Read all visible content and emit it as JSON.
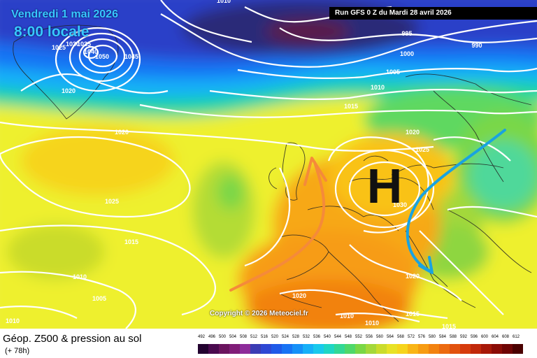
{
  "header": {
    "date": "Vendredi 1 mai 2026",
    "time": "8:00 locale",
    "run": "Run GFS 0 Z du Mardi 28 avril 2026"
  },
  "map": {
    "high_symbol": "H",
    "copyright": "Copyright © 2026 Meteociel.fr",
    "isobar_labels": [
      "1010",
      "995",
      "990",
      "1000",
      "1005",
      "1010",
      "1015",
      "1020",
      "1025",
      "1030",
      "1025",
      "1035",
      "1040",
      "1045",
      "1050",
      "1020",
      "1020",
      "1025",
      "1015",
      "1010",
      "1005",
      "1010",
      "1020",
      "1020",
      "1015",
      "1010",
      "1010",
      "1015",
      "1030"
    ],
    "colors": {
      "low": "#2a1a4a",
      "mid": "#0a3cc8",
      "warm": "#f6d200",
      "hot": "#ff8800"
    }
  },
  "footer": {
    "title": "Géop. Z500 & pression au sol",
    "subtitle": "(+ 78h)"
  },
  "legend": {
    "values": [
      "492",
      "496",
      "500",
      "504",
      "508",
      "512",
      "516",
      "520",
      "524",
      "528",
      "532",
      "536",
      "540",
      "544",
      "548",
      "552",
      "556",
      "560",
      "564",
      "568",
      "572",
      "576",
      "580",
      "584",
      "588",
      "592",
      "596",
      "600",
      "604",
      "608",
      "612"
    ],
    "colors": [
      "#230330",
      "#4a0a4e",
      "#6a145e",
      "#801d78",
      "#8d2c9a",
      "#3b3cb4",
      "#2e48d4",
      "#1f5ae8",
      "#1873f4",
      "#1690f8",
      "#17b0f8",
      "#19c9ec",
      "#1fd6c4",
      "#32d896",
      "#4fd86a",
      "#7ad746",
      "#a4d83a",
      "#cadc2c",
      "#e8e226",
      "#f6d41c",
      "#f9b516",
      "#f79c12",
      "#f28210",
      "#ec6a10",
      "#e2520e",
      "#d63b0c",
      "#c1280a",
      "#a71808",
      "#8a0c06",
      "#6e0404",
      "#4a0000"
    ]
  }
}
